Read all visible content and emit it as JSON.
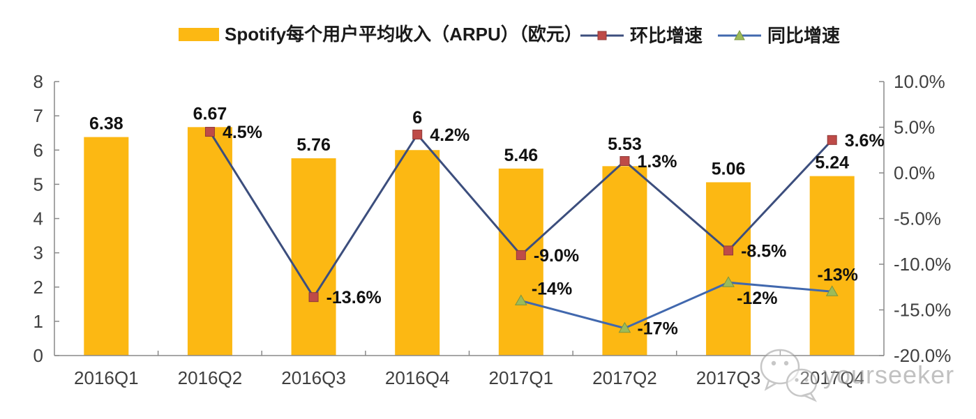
{
  "legend": {
    "items": [
      {
        "label": "Spotify每个用户平均收入（ARPU）（欧元）",
        "marker": "bar-swatch",
        "color": "#FCB813"
      },
      {
        "label": "环比增速",
        "marker": "line-square",
        "line_color": "#3C4E7D",
        "marker_color": "#BE4B48"
      },
      {
        "label": "同比增速",
        "marker": "line-triangle",
        "line_color": "#4168AE",
        "marker_color": "#9CBB59"
      }
    ]
  },
  "watermark": {
    "text": "yourseeker",
    "icon": "wechat-icon"
  },
  "colors": {
    "bar": "#FCB813",
    "qoq_line": "#3C4E7D",
    "qoq_marker": "#BE4B48",
    "yoy_line": "#4168AE",
    "yoy_marker": "#9CBB59",
    "axis": "#898989",
    "tick_text": "#3f3f3f",
    "data_label_text": "#111111",
    "watermark_gray": "#8f8f8f"
  },
  "chart_data": {
    "type": "bar+line",
    "categories": [
      "2016Q1",
      "2016Q2",
      "2016Q3",
      "2016Q4",
      "2017Q1",
      "2017Q2",
      "2017Q3",
      "2017Q4"
    ],
    "bar_series": {
      "name": "Spotify每个用户平均收入（ARPU）（欧元）",
      "axis": "left",
      "values": [
        6.38,
        6.67,
        5.76,
        6,
        5.46,
        5.53,
        5.06,
        5.24
      ],
      "labels": [
        "6.38",
        "6.67",
        "5.76",
        "6",
        "5.46",
        "5.53",
        "5.06",
        "5.24"
      ],
      "color": "#FCB813"
    },
    "line_series": [
      {
        "name": "环比增速",
        "axis": "right",
        "marker": "square",
        "line_color": "#3C4E7D",
        "marker_color": "#BE4B48",
        "points": [
          {
            "category": "2016Q2",
            "value": 4.5,
            "label": "4.5%",
            "label_pos": "right"
          },
          {
            "category": "2016Q3",
            "value": -13.6,
            "label": "-13.6%",
            "label_pos": "right"
          },
          {
            "category": "2016Q4",
            "value": 4.2,
            "label": "4.2%",
            "label_pos": "right"
          },
          {
            "category": "2017Q1",
            "value": -9.0,
            "label": "-9.0%",
            "label_pos": "right"
          },
          {
            "category": "2017Q2",
            "value": 1.3,
            "label": "1.3%",
            "label_pos": "right"
          },
          {
            "category": "2017Q3",
            "value": -8.5,
            "label": "-8.5%",
            "label_pos": "right"
          },
          {
            "category": "2017Q4",
            "value": 3.6,
            "label": "3.6%",
            "label_pos": "right"
          }
        ]
      },
      {
        "name": "同比增速",
        "axis": "right",
        "marker": "triangle",
        "line_color": "#4168AE",
        "marker_color": "#9CBB59",
        "points": [
          {
            "category": "2017Q1",
            "value": -14,
            "label": "-14%",
            "label_pos": "above-right"
          },
          {
            "category": "2017Q2",
            "value": -17,
            "label": "-17%",
            "label_pos": "right"
          },
          {
            "category": "2017Q3",
            "value": -12,
            "label": "-12%",
            "label_pos": "below-right"
          },
          {
            "category": "2017Q4",
            "value": -13,
            "label": "-13%",
            "label_pos": "above"
          }
        ]
      }
    ],
    "left_axis": {
      "min": 0,
      "max": 8,
      "step": 1,
      "tick_labels": [
        "0",
        "1",
        "2",
        "3",
        "4",
        "5",
        "6",
        "7",
        "8"
      ]
    },
    "right_axis": {
      "min": -20,
      "max": 10,
      "step": 5,
      "tick_labels": [
        "10.0%",
        "5.0%",
        "0.0%",
        "-5.0%",
        "-10.0%",
        "-15.0%",
        "-20.0%"
      ]
    },
    "grid": false,
    "legend_position": "top"
  }
}
